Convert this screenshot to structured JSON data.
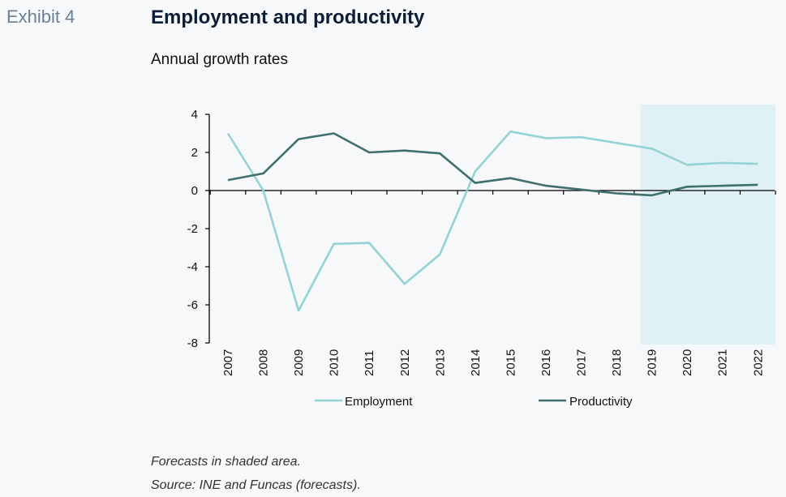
{
  "header": {
    "exhibit": "Exhibit 4",
    "title": "Employment and productivity",
    "subtitle": "Annual growth rates"
  },
  "notes": {
    "forecast": "Forecasts in shaded area.",
    "source": "Source: INE and Funcas (forecasts)."
  },
  "chart_data": {
    "type": "line",
    "categories": [
      "2007",
      "2008",
      "2009",
      "2010",
      "2011",
      "2012",
      "2013",
      "2014",
      "2015",
      "2016",
      "2017",
      "2018",
      "2019",
      "2020",
      "2021",
      "2022"
    ],
    "series": [
      {
        "name": "Employment",
        "color": "#93d3d6",
        "values": [
          3.0,
          0.0,
          -6.3,
          -2.8,
          -2.75,
          -4.9,
          -3.35,
          1.0,
          3.1,
          2.75,
          2.8,
          2.5,
          2.2,
          1.35,
          1.45,
          1.4
        ]
      },
      {
        "name": "Productivity",
        "color": "#3f6f6e",
        "values": [
          0.55,
          0.9,
          2.7,
          3.0,
          2.0,
          2.1,
          1.95,
          0.4,
          0.65,
          0.25,
          0.05,
          -0.15,
          -0.25,
          0.2,
          0.25,
          0.3
        ]
      }
    ],
    "forecast_start": "2019",
    "forecast_color": "#e0f1f5",
    "ylim": [
      -8,
      4
    ],
    "yticks": [
      4,
      2,
      0,
      -2,
      -4,
      -6,
      -8
    ],
    "legend_position": "bottom",
    "grid": false
  }
}
